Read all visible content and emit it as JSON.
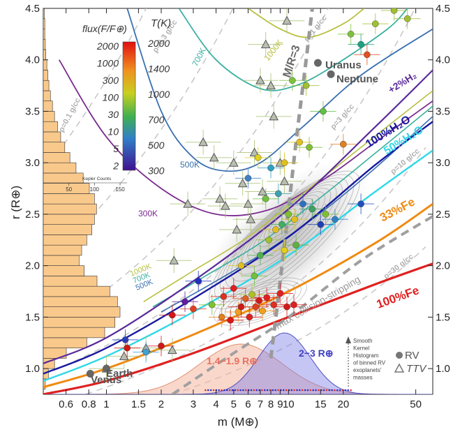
{
  "chart_data": {
    "type": "scatter",
    "xlabel": "m (M⊕)",
    "ylabel": "r (R⊕)",
    "x_scale": "log",
    "xlim": [
      0.45,
      62
    ],
    "ylim": [
      0.75,
      4.5
    ],
    "x_ticks": [
      0.6,
      0.8,
      1,
      1.5,
      2,
      3,
      4,
      5,
      6,
      7,
      8,
      9,
      10,
      15,
      20,
      50
    ],
    "y_ticks": [
      1.0,
      1.5,
      2.0,
      2.5,
      3.0,
      3.5,
      4.0,
      4.5
    ],
    "colorbar": {
      "flux_label": "flux(F/F⊕)",
      "temp_label": "T(K)",
      "flux_ticks": [
        "2000",
        "1000",
        "300",
        "100",
        "30",
        "10",
        "5",
        "2"
      ],
      "temp_ticks": [
        "2000",
        "1400",
        "1000",
        "700",
        "500",
        "300"
      ]
    },
    "kepler_hist": {
      "axis_label": "Kepler Counts",
      "ticks": [
        "50",
        "100",
        "150"
      ],
      "bins": [
        {
          "r": 0.8,
          "count": 4
        },
        {
          "r": 0.9,
          "count": 10
        },
        {
          "r": 1.0,
          "count": 22
        },
        {
          "r": 1.1,
          "count": 45
        },
        {
          "r": 1.2,
          "count": 85
        },
        {
          "r": 1.3,
          "count": 120
        },
        {
          "r": 1.4,
          "count": 140
        },
        {
          "r": 1.5,
          "count": 150
        },
        {
          "r": 1.6,
          "count": 145
        },
        {
          "r": 1.7,
          "count": 130
        },
        {
          "r": 1.8,
          "count": 105
        },
        {
          "r": 1.9,
          "count": 80
        },
        {
          "r": 2.0,
          "count": 70
        },
        {
          "r": 2.1,
          "count": 75
        },
        {
          "r": 2.2,
          "count": 85
        },
        {
          "r": 2.3,
          "count": 95
        },
        {
          "r": 2.4,
          "count": 100
        },
        {
          "r": 2.5,
          "count": 104
        },
        {
          "r": 2.6,
          "count": 100
        },
        {
          "r": 2.7,
          "count": 90
        },
        {
          "r": 2.8,
          "count": 78
        },
        {
          "r": 2.9,
          "count": 64
        },
        {
          "r": 3.0,
          "count": 52
        },
        {
          "r": 3.1,
          "count": 42
        },
        {
          "r": 3.2,
          "count": 34
        },
        {
          "r": 3.3,
          "count": 28
        },
        {
          "r": 3.4,
          "count": 22
        },
        {
          "r": 3.5,
          "count": 18
        },
        {
          "r": 3.6,
          "count": 14
        },
        {
          "r": 3.7,
          "count": 11
        },
        {
          "r": 3.8,
          "count": 9
        },
        {
          "r": 3.9,
          "count": 7
        },
        {
          "r": 4.0,
          "count": 5
        },
        {
          "r": 4.1,
          "count": 4
        },
        {
          "r": 4.2,
          "count": 3
        },
        {
          "r": 4.3,
          "count": 3
        },
        {
          "r": 4.4,
          "count": 2
        }
      ]
    },
    "composition_curves": [
      {
        "label": "100%Fe",
        "color": "#e02020",
        "points": [
          [
            0.45,
            0.75
          ],
          [
            1,
            0.88
          ],
          [
            3,
            1.15
          ],
          [
            10,
            1.5
          ],
          [
            30,
            1.82
          ],
          [
            62,
            2.02
          ]
        ]
      },
      {
        "label": "33%Fe",
        "color": "#f08a10",
        "points": [
          [
            0.45,
            0.82
          ],
          [
            1,
            1.0
          ],
          [
            3,
            1.33
          ],
          [
            10,
            1.75
          ],
          [
            30,
            2.22
          ],
          [
            62,
            2.6
          ]
        ]
      },
      {
        "label": "50%H₂O",
        "color": "#30d8e8",
        "points": [
          [
            0.45,
            0.88
          ],
          [
            1,
            1.12
          ],
          [
            3,
            1.55
          ],
          [
            10,
            2.1
          ],
          [
            30,
            2.72
          ],
          [
            62,
            3.12
          ]
        ]
      },
      {
        "label": "100%H₂O",
        "color": "#1818a0",
        "points": [
          [
            0.45,
            0.95
          ],
          [
            1,
            1.2
          ],
          [
            3,
            1.68
          ],
          [
            10,
            2.28
          ],
          [
            30,
            2.98
          ],
          [
            62,
            3.4
          ]
        ]
      },
      {
        "label": "+2%H₂",
        "color": "#5a2a9a",
        "points": [
          [
            0.45,
            1.05
          ],
          [
            1,
            1.3
          ],
          [
            3,
            1.85
          ],
          [
            10,
            2.55
          ],
          [
            30,
            3.35
          ],
          [
            62,
            3.9
          ]
        ]
      }
    ],
    "isotherm_curves": [
      {
        "label": "300K",
        "color": "#7a2a90",
        "points": [
          [
            0.55,
            4.0
          ],
          [
            1,
            3.25
          ],
          [
            2,
            2.75
          ],
          [
            4,
            2.5
          ],
          [
            8,
            2.55
          ],
          [
            16,
            2.85
          ],
          [
            30,
            3.2
          ],
          [
            62,
            3.6
          ]
        ]
      },
      {
        "label": "500K",
        "color": "#3a70b0",
        "points": [
          [
            1.3,
            4.5
          ],
          [
            2,
            3.5
          ],
          [
            3,
            3.05
          ],
          [
            4.5,
            2.92
          ],
          [
            7,
            3.0
          ],
          [
            12,
            3.35
          ],
          [
            25,
            3.85
          ],
          [
            62,
            4.3
          ]
        ]
      },
      {
        "label": "700K",
        "color": "#3ab0a0",
        "points": [
          [
            2.5,
            4.5
          ],
          [
            4,
            4.0
          ],
          [
            7,
            3.72
          ],
          [
            11,
            3.75
          ],
          [
            18,
            3.95
          ],
          [
            35,
            4.3
          ],
          [
            45,
            4.5
          ]
        ]
      },
      {
        "label": "1000K",
        "color": "#b8c040",
        "points": [
          [
            6,
            4.5
          ],
          [
            9,
            4.3
          ],
          [
            13,
            4.22
          ],
          [
            20,
            4.35
          ],
          [
            26,
            4.5
          ]
        ]
      }
    ],
    "density_lines": [
      {
        "label": "ρ=0.1 g/cc"
      },
      {
        "label": "ρ=0.3 g/cc"
      },
      {
        "label": "ρ=1 g/cc"
      },
      {
        "label": "ρ=3 g/cc"
      },
      {
        "label": "ρ=10 g/cc"
      },
      {
        "label": "ρ=30 g/cc"
      }
    ],
    "annotations": {
      "mr3": "M/R=3",
      "collision": "max collision-stripping",
      "fe100": "100%Fe",
      "fe33": "33%Fe",
      "h2o50": "50%H₂O",
      "h2o100": "100%H₂O",
      "h2": "+2%H₂",
      "uranus": "Uranus",
      "neptune": "Neptune",
      "earth": "Earth",
      "venus": "Venus",
      "range1": "1.4−1.9 R⊕",
      "range2": "2−3 R⊕",
      "kernel_note": [
        "Smooth",
        "Kernel",
        "Histogram",
        "of binned RV",
        "exoplanets'",
        "masses"
      ],
      "iso_lower": [
        "1000K",
        "700K",
        "500K"
      ]
    },
    "legend": {
      "rv": "RV",
      "ttv": "TTV"
    },
    "solar_system": [
      {
        "name": "Uranus",
        "m": 14.5,
        "r": 3.97
      },
      {
        "name": "Neptune",
        "m": 17.1,
        "r": 3.86
      },
      {
        "name": "Earth",
        "m": 1.0,
        "r": 1.0
      },
      {
        "name": "Venus",
        "m": 0.815,
        "r": 0.95
      }
    ],
    "rv_planets": [
      {
        "m": 1.27,
        "r": 1.28,
        "color": "#2040c8"
      },
      {
        "m": 1.3,
        "r": 1.2,
        "color": "#d01818"
      },
      {
        "m": 1.65,
        "r": 1.16,
        "color": "#40a0d0"
      },
      {
        "m": 2.0,
        "r": 1.22,
        "color": "#d01818"
      },
      {
        "m": 2.3,
        "r": 1.52,
        "color": "#d01818"
      },
      {
        "m": 2.7,
        "r": 1.65,
        "color": "#6020a0"
      },
      {
        "m": 3.0,
        "r": 1.58,
        "color": "#e04020"
      },
      {
        "m": 3.2,
        "r": 1.85,
        "color": "#2030c0"
      },
      {
        "m": 3.8,
        "r": 1.62,
        "color": "#80c030"
      },
      {
        "m": 4.3,
        "r": 1.5,
        "color": "#e08020"
      },
      {
        "m": 4.4,
        "r": 1.7,
        "color": "#e03020"
      },
      {
        "m": 4.8,
        "r": 1.47,
        "color": "#d81818"
      },
      {
        "m": 5.0,
        "r": 1.78,
        "color": "#e02020"
      },
      {
        "m": 5.3,
        "r": 1.55,
        "color": "#f0a020"
      },
      {
        "m": 5.5,
        "r": 1.6,
        "color": "#d01818"
      },
      {
        "m": 5.8,
        "r": 1.68,
        "color": "#e06020"
      },
      {
        "m": 6.1,
        "r": 1.5,
        "color": "#e02020"
      },
      {
        "m": 6.3,
        "r": 1.72,
        "color": "#b0c020"
      },
      {
        "m": 6.6,
        "r": 1.6,
        "color": "#e04020"
      },
      {
        "m": 6.9,
        "r": 1.66,
        "color": "#d01818"
      },
      {
        "m": 7.2,
        "r": 1.56,
        "color": "#f0a020"
      },
      {
        "m": 7.6,
        "r": 1.69,
        "color": "#e02020"
      },
      {
        "m": 8.3,
        "r": 1.62,
        "color": "#e03020"
      },
      {
        "m": 9.0,
        "r": 1.73,
        "color": "#e02020"
      },
      {
        "m": 9.8,
        "r": 1.6,
        "color": "#d01818"
      },
      {
        "m": 10.7,
        "r": 1.62,
        "color": "#e02020"
      },
      {
        "m": 6.5,
        "r": 1.9,
        "color": "#70c040"
      },
      {
        "m": 7.0,
        "r": 2.1,
        "color": "#50b050"
      },
      {
        "m": 5.5,
        "r": 2.0,
        "color": "#e0c020"
      },
      {
        "m": 7.8,
        "r": 2.25,
        "color": "#a0c030"
      },
      {
        "m": 8.5,
        "r": 2.35,
        "color": "#e0c020"
      },
      {
        "m": 9.2,
        "r": 2.4,
        "color": "#40b060"
      },
      {
        "m": 10.0,
        "r": 2.5,
        "color": "#80c030"
      },
      {
        "m": 10.8,
        "r": 2.45,
        "color": "#e0c020"
      },
      {
        "m": 12.0,
        "r": 2.6,
        "color": "#3070c0"
      },
      {
        "m": 13.5,
        "r": 2.55,
        "color": "#40a060"
      },
      {
        "m": 15.0,
        "r": 2.4,
        "color": "#2040b0"
      },
      {
        "m": 16.0,
        "r": 2.5,
        "color": "#80c030"
      },
      {
        "m": 18.0,
        "r": 2.45,
        "color": "#3080c0"
      },
      {
        "m": 25.0,
        "r": 2.6,
        "color": "#2050c0"
      },
      {
        "m": 11.0,
        "r": 2.2,
        "color": "#60b040"
      },
      {
        "m": 9.5,
        "r": 2.15,
        "color": "#e0d020"
      },
      {
        "m": 8.8,
        "r": 2.7,
        "color": "#40a0b0"
      },
      {
        "m": 7.5,
        "r": 2.65,
        "color": "#70c040"
      },
      {
        "m": 6.0,
        "r": 2.85,
        "color": "#4080c0"
      },
      {
        "m": 6.8,
        "r": 3.05,
        "color": "#e0d020"
      },
      {
        "m": 8.0,
        "r": 2.95,
        "color": "#30a0c0"
      },
      {
        "m": 9.5,
        "r": 3.0,
        "color": "#e0c020"
      },
      {
        "m": 11.5,
        "r": 3.2,
        "color": "#e0c020"
      },
      {
        "m": 13.0,
        "r": 3.15,
        "color": "#80c030"
      },
      {
        "m": 20.0,
        "r": 3.18,
        "color": "#e08020"
      },
      {
        "m": 15.5,
        "r": 3.5,
        "color": "#60c040"
      },
      {
        "m": 10.5,
        "r": 3.8,
        "color": "#80c040"
      },
      {
        "m": 22.0,
        "r": 4.25,
        "color": "#80c040"
      },
      {
        "m": 25.0,
        "r": 4.15,
        "color": "#20a080"
      },
      {
        "m": 27.0,
        "r": 4.05,
        "color": "#e05020"
      },
      {
        "m": 30.0,
        "r": 4.35,
        "color": "#a0c030"
      },
      {
        "m": 38.0,
        "r": 4.48,
        "color": "#a0c030"
      },
      {
        "m": 45.0,
        "r": 4.4,
        "color": "#a0c030"
      },
      {
        "m": 12.5,
        "r": 3.75,
        "color": "#a0c030"
      }
    ],
    "ttv_planets": [
      {
        "m": 1.0,
        "r": 1.0
      },
      {
        "m": 1.25,
        "r": 1.12
      },
      {
        "m": 1.65,
        "r": 1.2
      },
      {
        "m": 2.3,
        "r": 1.18
      },
      {
        "m": 2.35,
        "r": 2.05
      },
      {
        "m": 2.8,
        "r": 2.6
      },
      {
        "m": 3.4,
        "r": 3.2
      },
      {
        "m": 3.9,
        "r": 3.05
      },
      {
        "m": 4.2,
        "r": 2.65
      },
      {
        "m": 4.5,
        "r": 2.58
      },
      {
        "m": 5.0,
        "r": 3.0
      },
      {
        "m": 5.6,
        "r": 2.8
      },
      {
        "m": 6.0,
        "r": 2.6
      },
      {
        "m": 5.2,
        "r": 2.35
      },
      {
        "m": 6.5,
        "r": 3.1
      },
      {
        "m": 7.0,
        "r": 3.8
      },
      {
        "m": 7.5,
        "r": 4.15
      },
      {
        "m": 8.3,
        "r": 3.45
      },
      {
        "m": 9.0,
        "r": 3.0
      },
      {
        "m": 9.8,
        "r": 4.38
      },
      {
        "m": 6.2,
        "r": 2.45
      },
      {
        "m": 7.2,
        "r": 2.72
      },
      {
        "m": 8.0,
        "r": 3.75
      },
      {
        "m": 9.5,
        "r": 2.82
      }
    ]
  }
}
